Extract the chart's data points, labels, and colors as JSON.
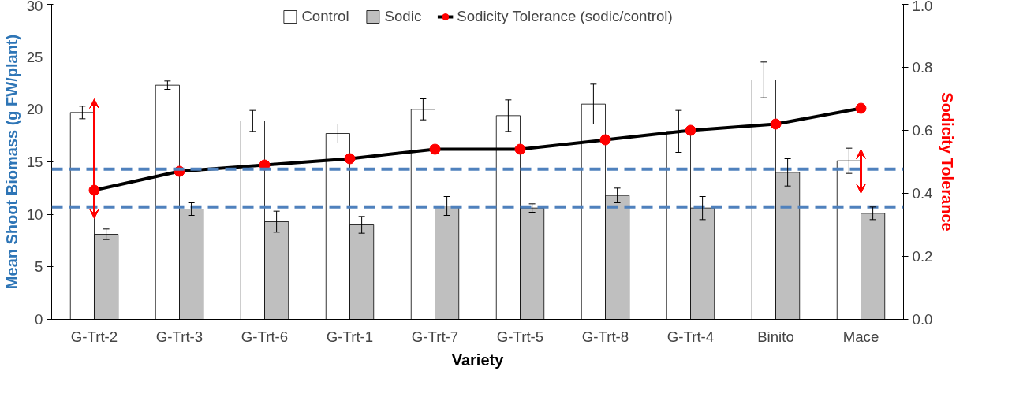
{
  "chart_data": {
    "type": "bar",
    "categories": [
      "G-Trt-2",
      "G-Trt-3",
      "G-Trt-6",
      "G-Trt-1",
      "G-Trt-7",
      "G-Trt-5",
      "G-Trt-8",
      "G-Trt-4",
      "Binito",
      "Mace"
    ],
    "xlabel": "Variety",
    "ylabel": "Mean Shoot Biomass (g FW/plant)",
    "y2label": "Sodicity Tolerance",
    "ylim": [
      0,
      30
    ],
    "yticks": [
      0,
      5,
      10,
      15,
      20,
      25,
      30
    ],
    "y2lim": [
      0,
      1
    ],
    "y2ticks": [
      {
        "value": 0,
        "label": "0.0"
      },
      {
        "value": 0.2,
        "label": "0.2"
      },
      {
        "value": 0.4,
        "label": "0.4"
      },
      {
        "value": 0.6,
        "label": "0.6"
      },
      {
        "value": 0.8,
        "label": "0.8"
      },
      {
        "value": 1,
        "label": "1.0"
      }
    ],
    "series": [
      {
        "name": "Control",
        "color": "#ffffff",
        "values": [
          19.7,
          22.3,
          18.9,
          17.7,
          20.0,
          19.4,
          20.5,
          17.9,
          22.8,
          15.1
        ],
        "errors": [
          0.6,
          0.4,
          1.0,
          0.9,
          1.0,
          1.5,
          1.9,
          2.0,
          1.7,
          1.2
        ]
      },
      {
        "name": "Sodic",
        "color": "#bfbfbf",
        "values": [
          8.1,
          10.5,
          9.3,
          9.0,
          10.8,
          10.6,
          11.8,
          10.6,
          14.0,
          10.1
        ],
        "errors": [
          0.5,
          0.6,
          1.0,
          0.8,
          0.9,
          0.4,
          0.7,
          1.1,
          1.3,
          0.6
        ]
      },
      {
        "name": "Sodicity Tolerance (sodic/control)",
        "type": "line",
        "axis": "y2",
        "color": "#000000",
        "colors": [
          "#ff0000",
          "#ff0000",
          "#ff0000",
          "#ff0000",
          "#ff0000",
          "#ff0000",
          "#ff0000",
          "#ff0000",
          "#ff0000",
          "#ff0000"
        ],
        "values": [
          0.41,
          0.47,
          0.49,
          0.51,
          0.54,
          0.54,
          0.57,
          0.6,
          0.62,
          0.67
        ]
      }
    ],
    "ref_lines": [
      {
        "axis": "y",
        "value": 14.3,
        "color": "#4f81bd",
        "line_style": "dashed"
      },
      {
        "axis": "y",
        "value": 10.7,
        "color": "#4f81bd",
        "line_style": "dashed"
      }
    ],
    "marker": "circle",
    "grid": false,
    "legend": "top"
  }
}
